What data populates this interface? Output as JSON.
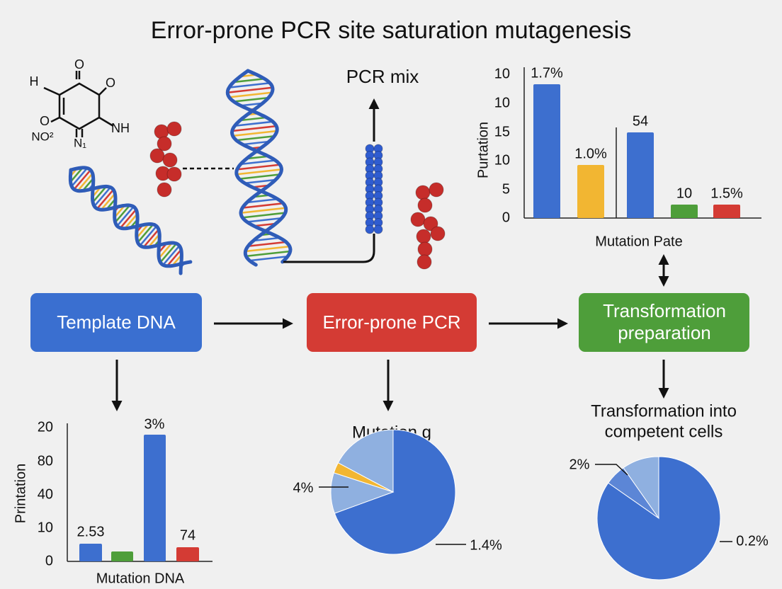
{
  "title": "Error-prone PCR site saturation mutagenesis",
  "molecule": {
    "labels": [
      "O",
      "H",
      "O",
      "O",
      "NH",
      "NO²",
      "N₁"
    ]
  },
  "pcr_mix": "PCR mix",
  "top_chart": {
    "y_label": "Purtation",
    "ticks": [
      "10",
      "10",
      "15",
      "10",
      "5",
      "0"
    ],
    "value_labels": [
      "1.7%",
      "1.0%",
      "54",
      "10",
      "1.5%"
    ],
    "x_label": "Mutation Pate"
  },
  "steps": [
    {
      "lines": [
        "Template DNA"
      ]
    },
    {
      "lines": [
        "Error-prone PCR"
      ]
    },
    {
      "lines": [
        "Transformation",
        "preparation"
      ]
    }
  ],
  "bottom_chart": {
    "y_label": "Printation",
    "ticks": [
      "20",
      "80",
      "40",
      "10",
      "0"
    ],
    "value_labels": [
      "2.53",
      "3%",
      "74"
    ],
    "x_label": "Mutation DNA"
  },
  "pie_mutation": {
    "title": [
      "Mutation g"
    ],
    "labels": [
      "4%",
      "1.4%"
    ]
  },
  "pie_transformation": {
    "title": [
      "Transformation into",
      "competent cells"
    ],
    "labels": [
      "2%",
      "0.2%"
    ]
  }
}
